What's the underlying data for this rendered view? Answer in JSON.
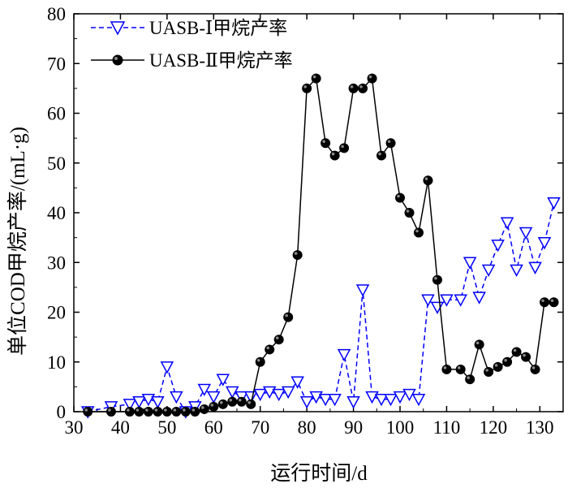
{
  "chart_data": {
    "type": "line",
    "xlabel": "运行时间/d",
    "ylabel": "单位COD甲烷产率/(mL·g)",
    "xlim": [
      30,
      135
    ],
    "ylim": [
      0,
      80
    ],
    "xticks": [
      30,
      40,
      50,
      60,
      70,
      80,
      90,
      100,
      110,
      120,
      130
    ],
    "yticks": [
      0,
      10,
      20,
      30,
      40,
      50,
      60,
      70,
      80
    ],
    "legend_position": "top-left",
    "series": [
      {
        "name": "UASB-Ⅰ甲烷产率",
        "color": "#0000ff",
        "marker": "triangle-down-open",
        "x": [
          33,
          38,
          42,
          44,
          46,
          48,
          50,
          52,
          54,
          56,
          58,
          60,
          62,
          64,
          66,
          68,
          70,
          72,
          74,
          76,
          78,
          80,
          82,
          84,
          86,
          88,
          90,
          92,
          94,
          96,
          98,
          100,
          102,
          104,
          106,
          108,
          110,
          113,
          115,
          117,
          119,
          121,
          123,
          125,
          127,
          129,
          131,
          133
        ],
        "y": [
          0,
          1,
          1.5,
          2,
          2.5,
          2,
          9,
          3,
          0,
          1,
          4.5,
          3,
          6.5,
          4,
          3,
          3,
          3.5,
          4,
          3.5,
          4,
          6,
          2,
          3,
          2.5,
          2.5,
          11.5,
          2,
          24.5,
          3,
          2.5,
          2.5,
          3,
          3.5,
          2.5,
          22.5,
          21,
          22.5,
          22.5,
          30,
          23,
          28.5,
          33.5,
          38,
          28.5,
          36,
          29,
          34,
          42
        ]
      },
      {
        "name": "UASB-Ⅱ甲烷产率",
        "color": "#000000",
        "marker": "circle-filled",
        "x": [
          33,
          38,
          42,
          44,
          46,
          48,
          50,
          52,
          54,
          56,
          58,
          60,
          62,
          64,
          66,
          68,
          70,
          72,
          74,
          76,
          78,
          80,
          82,
          84,
          86,
          88,
          90,
          92,
          94,
          96,
          98,
          100,
          102,
          104,
          106,
          108,
          110,
          113,
          115,
          117,
          119,
          121,
          123,
          125,
          127,
          129,
          131,
          133
        ],
        "y": [
          0,
          0,
          0,
          0,
          0,
          0,
          0,
          0,
          0,
          0,
          0.5,
          1,
          1.5,
          2,
          2,
          1.5,
          10,
          12.5,
          14.5,
          19,
          31.5,
          65,
          67,
          54,
          51.5,
          53,
          65,
          65,
          67,
          51.5,
          54,
          43,
          40,
          36,
          46.5,
          26.5,
          8.5,
          8.5,
          6.5,
          13.5,
          8,
          9,
          10,
          12,
          11,
          8.5,
          22,
          22
        ]
      }
    ]
  }
}
